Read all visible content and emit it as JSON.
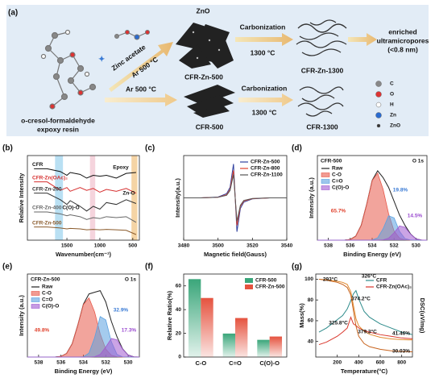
{
  "schematic": {
    "panel_label": "(a)",
    "zno": "ZnO",
    "zinc_acetate": "Zinc acetate",
    "ar_top": "Ar 500 °C",
    "cfr_zn_500": "CFR-Zn-500",
    "carbonization_top": "Carbonization",
    "temp_top": "1300 °C",
    "cfr_zn_1300": "CFR-Zn-1300",
    "result": [
      "enriched",
      "ultramicropores",
      "(<0.8 nm)"
    ],
    "resin": [
      "o-cresol-formaldehyde",
      "expoxy resin"
    ],
    "ar_bottom": "Ar 500 °C",
    "cfr_500": "CFR-500",
    "carbonization_bottom": "Carbonization",
    "temp_bottom": "1300 °C",
    "cfr_1300": "CFR-1300",
    "legend": [
      "C",
      "O",
      "H",
      "Zn",
      "ZnO"
    ]
  },
  "chart_data": [
    {
      "panel_label": "(b)",
      "type": "line",
      "x_label": "Wavenumber(cm⁻¹)",
      "y_label": "Relative Intensity",
      "x": [
        2000,
        1800,
        1600,
        1500,
        1450,
        1300,
        1200,
        1100,
        1000,
        900,
        750,
        600,
        450
      ],
      "xlim": [
        2100,
        400
      ],
      "xticks": [
        1500,
        1000,
        500
      ],
      "ylim": [
        1,
        10
      ],
      "legend": "on-curve",
      "bands": [
        {
          "range": [
            1560,
            1680
          ],
          "color": "#a8d8f0"
        },
        {
          "range": [
            1070,
            1150
          ],
          "color": "#f3c9d4"
        },
        {
          "range": [
            430,
            520
          ],
          "color": "#f3c98f"
        }
      ],
      "series": [
        {
          "name": "CFR",
          "color": "#111111",
          "values": [
            8.6,
            8.6,
            8.3,
            7.9,
            8.2,
            8.0,
            7.6,
            7.9,
            7.8,
            7.9,
            7.6,
            8.1,
            8.2
          ]
        },
        {
          "name": "CFR-Zn(OAc)₂",
          "color": "#d62f2f",
          "values": [
            7.2,
            7.2,
            6.3,
            6.6,
            6.2,
            6.6,
            6.3,
            6.5,
            6.1,
            6.4,
            6.2,
            6.5,
            6.0
          ]
        },
        {
          "name": "CFR-Zn-200",
          "color": "#333333",
          "values": [
            6.0,
            6.0,
            5.3,
            4.8,
            5.2,
            4.6,
            4.1,
            4.6,
            4.3,
            5.0,
            4.8,
            5.3,
            4.9
          ]
        },
        {
          "name": "CFR-Zn-400",
          "color": "#666666",
          "values": [
            4.0,
            4.0,
            3.8,
            3.6,
            3.7,
            3.5,
            3.2,
            3.4,
            3.3,
            3.5,
            3.4,
            3.5,
            2.9
          ]
        },
        {
          "name": "CFR-Zn-500",
          "color": "#8a5a2b",
          "values": [
            2.4,
            2.4,
            2.3,
            2.2,
            2.25,
            2.2,
            2.1,
            2.15,
            2.1,
            2.15,
            2.1,
            2.05,
            1.6
          ]
        }
      ],
      "annotations": [
        "Epoxy",
        "Zn-O",
        "C(O)-O"
      ]
    },
    {
      "panel_label": "(c)",
      "type": "line",
      "x_label": "Magnetic field(Gauss)",
      "y_label": "Intensity(a.u.)",
      "x": [
        3480,
        3490,
        3500,
        3505,
        3507,
        3509,
        3510,
        3511,
        3513,
        3515,
        3520,
        3530,
        3540
      ],
      "xlim": [
        3480,
        3540
      ],
      "xticks": [
        3480,
        3500,
        3520,
        3540
      ],
      "ylim": [
        -0.2,
        0.2
      ],
      "legend": "upper right",
      "series": [
        {
          "name": "CFR-Zn-500",
          "color": "#2e3f9e",
          "values": [
            0,
            0,
            0.004,
            0.02,
            0.05,
            0.16,
            0.0,
            -0.16,
            -0.05,
            -0.02,
            -0.005,
            0,
            0
          ]
        },
        {
          "name": "CFR-Zn-800",
          "color": "#e0432e",
          "values": [
            0,
            0,
            0.003,
            0.015,
            0.04,
            0.13,
            0.0,
            -0.13,
            -0.04,
            -0.015,
            -0.004,
            0,
            0
          ]
        },
        {
          "name": "CFR-Zn-1100",
          "color": "#555555",
          "values": [
            0,
            0,
            0.003,
            0.012,
            0.035,
            0.11,
            0.0,
            -0.11,
            -0.035,
            -0.012,
            -0.003,
            0,
            0
          ]
        }
      ]
    },
    {
      "panel_label": "(d)",
      "type": "area",
      "x_label": "Binding Energy (eV)",
      "y_label": "Intensity (a.u.)",
      "x": [
        539,
        538.5,
        538,
        537.5,
        537,
        536.5,
        536,
        535.5,
        535,
        534.5,
        534,
        533.5,
        533,
        532.5,
        532,
        531.5,
        531,
        530.5,
        530,
        529.5,
        529
      ],
      "xlim": [
        539,
        529
      ],
      "xticks": [
        538,
        536,
        534,
        532,
        530
      ],
      "ylim": [
        0,
        1.25
      ],
      "legend": "upper left",
      "series": [
        {
          "name": "Raw",
          "color": "#222222",
          "fill": false,
          "values": [
            0,
            0,
            0,
            0,
            0,
            0.001,
            0.011,
            0.06,
            0.22,
            0.53,
            0.883,
            1.025,
            0.924,
            0.78,
            0.575,
            0.37,
            0.218,
            0.093,
            0.02,
            0.002,
            0
          ]
        },
        {
          "name": "C-O",
          "color": "#e8594a",
          "fill": true,
          "values": [
            0,
            0,
            0,
            0,
            0,
            0.001,
            0.011,
            0.06,
            0.22,
            0.53,
            0.88,
            0.99,
            0.75,
            0.39,
            0.135,
            0.03,
            0.005,
            0.001,
            0,
            0,
            0
          ]
        },
        {
          "name": "C=O",
          "color": "#5aa0e0",
          "fill": true,
          "values": [
            0,
            0,
            0,
            0,
            0,
            0,
            0,
            0,
            0,
            0,
            0.003,
            0.035,
            0.17,
            0.36,
            0.33,
            0.13,
            0.023,
            0.002,
            0,
            0,
            0
          ]
        },
        {
          "name": "C(O)-O",
          "color": "#a05ad0",
          "fill": true,
          "values": [
            0,
            0,
            0,
            0,
            0,
            0,
            0,
            0,
            0,
            0,
            0,
            0,
            0.004,
            0.03,
            0.11,
            0.21,
            0.19,
            0.09,
            0.02,
            0.002,
            0
          ]
        }
      ],
      "annotations": [
        "CFR-500",
        "O 1s",
        "65.7%",
        "19.8%",
        "14.5%"
      ]
    },
    {
      "panel_label": "(e)",
      "type": "area",
      "x_label": "Binding Energy (eV)",
      "y_label": "Intensity (a.u.)",
      "x": [
        539,
        538.5,
        538,
        537.5,
        537,
        536.5,
        536,
        535.5,
        535,
        534.5,
        534,
        533.5,
        533,
        532.5,
        532,
        531.5,
        531,
        530.5,
        530,
        529.5,
        529
      ],
      "xlim": [
        539,
        529
      ],
      "xticks": [
        538,
        536,
        534,
        532,
        530
      ],
      "ylim": [
        0,
        1.25
      ],
      "legend": "upper left",
      "series": [
        {
          "name": "Raw",
          "color": "#222222",
          "fill": false,
          "values": [
            0,
            0,
            0,
            0,
            0,
            0.001,
            0.01,
            0.054,
            0.2,
            0.48,
            0.795,
            0.95,
            0.975,
            1.0,
            0.83,
            0.537,
            0.305,
            0.124,
            0.03,
            0.003,
            0
          ]
        },
        {
          "name": "C-O",
          "color": "#e8594a",
          "fill": true,
          "values": [
            0,
            0,
            0,
            0,
            0,
            0.001,
            0.01,
            0.054,
            0.2,
            0.48,
            0.79,
            0.89,
            0.68,
            0.35,
            0.12,
            0.027,
            0.005,
            0.001,
            0,
            0,
            0
          ]
        },
        {
          "name": "C=O",
          "color": "#5aa0e0",
          "fill": true,
          "values": [
            0,
            0,
            0,
            0,
            0,
            0,
            0,
            0,
            0,
            0,
            0.005,
            0.06,
            0.29,
            0.61,
            0.56,
            0.23,
            0.04,
            0.003,
            0,
            0,
            0
          ]
        },
        {
          "name": "C(O)-O",
          "color": "#a05ad0",
          "fill": true,
          "values": [
            0,
            0,
            0,
            0,
            0,
            0,
            0,
            0,
            0,
            0,
            0,
            0,
            0.005,
            0.04,
            0.15,
            0.28,
            0.26,
            0.12,
            0.03,
            0.003,
            0
          ]
        }
      ],
      "annotations": [
        "CFR-Zn-500",
        "O 1s",
        "49.8%",
        "32.9%",
        "17.3%"
      ]
    },
    {
      "panel_label": "(f)",
      "type": "bar",
      "y_label": "Relative Ratio(%)",
      "categories": [
        "C-O",
        "C=O",
        "C(O)-O"
      ],
      "ylim": [
        0,
        70
      ],
      "yticks": [
        0,
        20,
        40,
        60
      ],
      "legend": "upper right",
      "series": [
        {
          "name": "CFR-500",
          "color": "#3aa67a",
          "values": [
            65.7,
            19.8,
            14.5
          ]
        },
        {
          "name": "CFR-Zn-500",
          "color": "#e5533f",
          "values": [
            49.8,
            32.9,
            17.3
          ]
        }
      ]
    },
    {
      "panel_label": "(g)",
      "type": "line",
      "x_label": "Temperature(°C)",
      "y_label": "Mass(%)",
      "y2_label": "DSC(uV/mg)",
      "x": [
        30,
        100,
        200,
        250,
        293,
        326,
        350,
        374,
        400,
        450,
        500,
        600,
        700,
        800,
        900
      ],
      "xlim": [
        0,
        900
      ],
      "xticks": [
        200,
        400,
        600,
        800
      ],
      "ylim": [
        25,
        105
      ],
      "yticks": [
        40,
        60,
        80,
        100
      ],
      "y2lim": [
        0,
        10
      ],
      "legend": "upper right",
      "series": [
        {
          "name": "CFR",
          "color": "#2e8b8b",
          "axis": "y2",
          "values": [
            3,
            3.5,
            4.5,
            5,
            5.8,
            6.8,
            7.6,
            8,
            7,
            5.5,
            4.8,
            4,
            3.5,
            3,
            2.7
          ]
        },
        {
          "name": "CFR-Zn(OAc)₂",
          "color": "#d9362b",
          "axis": "y2",
          "values": [
            1.5,
            1.8,
            2.5,
            3,
            3.5,
            4.8,
            4,
            3.8,
            3.5,
            3.2,
            3,
            2.7,
            2.5,
            2.3,
            2.2
          ]
        },
        {
          "name": "CFR",
          "color": "#e08a2e",
          "values": [
            100,
            99.5,
            98,
            97,
            95,
            88,
            75,
            62,
            55,
            50,
            47,
            44,
            42.5,
            41.8,
            41.46
          ]
        },
        {
          "name": "CFR-Zn(OAc)₂",
          "color": "#c8641e",
          "values": [
            100,
            99,
            97,
            95,
            92,
            85,
            70,
            55,
            45,
            38,
            35,
            32.5,
            31,
            30.4,
            30.03
          ]
        }
      ],
      "annotations": [
        "293°C",
        "326°C",
        "374.2°C",
        "325.8°C",
        "379.3°C",
        "41.46%",
        "30.03%"
      ]
    }
  ]
}
